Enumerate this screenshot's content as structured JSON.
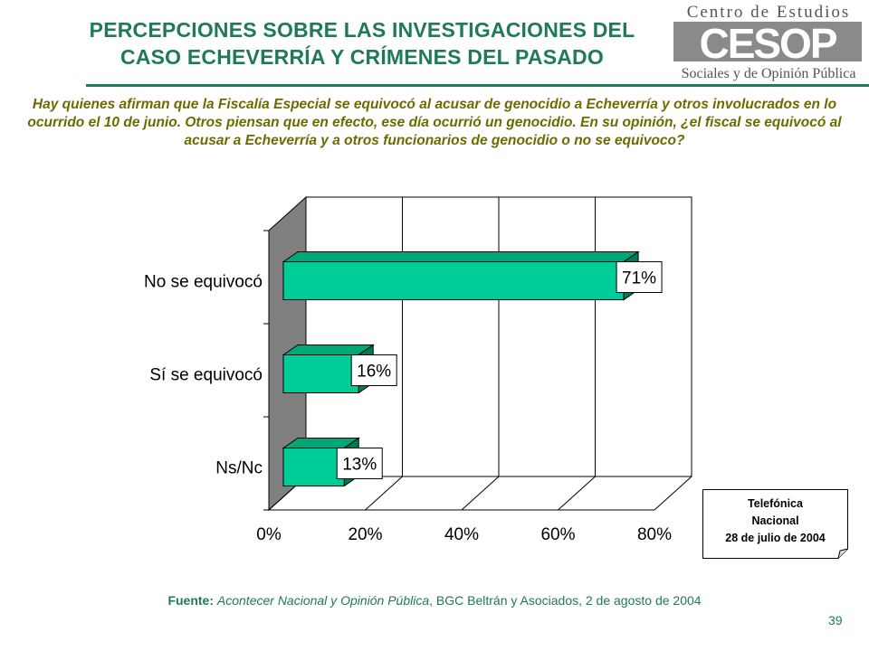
{
  "header": {
    "title_line1": "PERCEPCIONES SOBRE LAS INVESTIGACIONES DEL",
    "title_line2": "CASO ECHEVERRÍA Y CRÍMENES DEL PASADO",
    "question": "Hay quienes afirman que la Fiscalía Especial se equivocó al acusar de genocidio a Echeverría y otros involucrados en lo ocurrido el 10 de junio. Otros piensan que en efecto, ese día ocurrió un genocidio. En su opinión, ¿el fiscal se equivocó al acusar a Echeverría y a otros funcionarios de genocidio o no se equivoco?"
  },
  "logo": {
    "top_text": "Centro de Estudios",
    "mark_text": "CESOP",
    "bottom_text": "Sociales y de Opinión Pública"
  },
  "chart_data": {
    "type": "bar",
    "orientation": "horizontal",
    "categories": [
      "No se equivocó",
      "Sí se equivocó",
      "Ns/Nc"
    ],
    "values": [
      71,
      16,
      13
    ],
    "value_labels": [
      "71%",
      "16%",
      "13%"
    ],
    "xlim": [
      0,
      80
    ],
    "x_ticks": [
      0,
      20,
      40,
      60,
      80
    ],
    "x_tick_labels": [
      "0%",
      "20%",
      "40%",
      "60%",
      "80%"
    ],
    "grid": true,
    "bar_color": "#00cc99",
    "style": "3d"
  },
  "note": {
    "line1": "Telefónica",
    "line2": "Nacional",
    "line3": "28 de julio de 2004"
  },
  "footer": {
    "source_label": "Fuente:",
    "source_italic": "Acontecer Nacional y Opinión Pública",
    "source_rest": ", BGC Beltrán y Asociados, 2 de agosto de 2004",
    "page_number": "39"
  },
  "colors": {
    "brand_green": "#1f7a57",
    "question_olive": "#6b6b00",
    "bar": "#00cc99"
  }
}
